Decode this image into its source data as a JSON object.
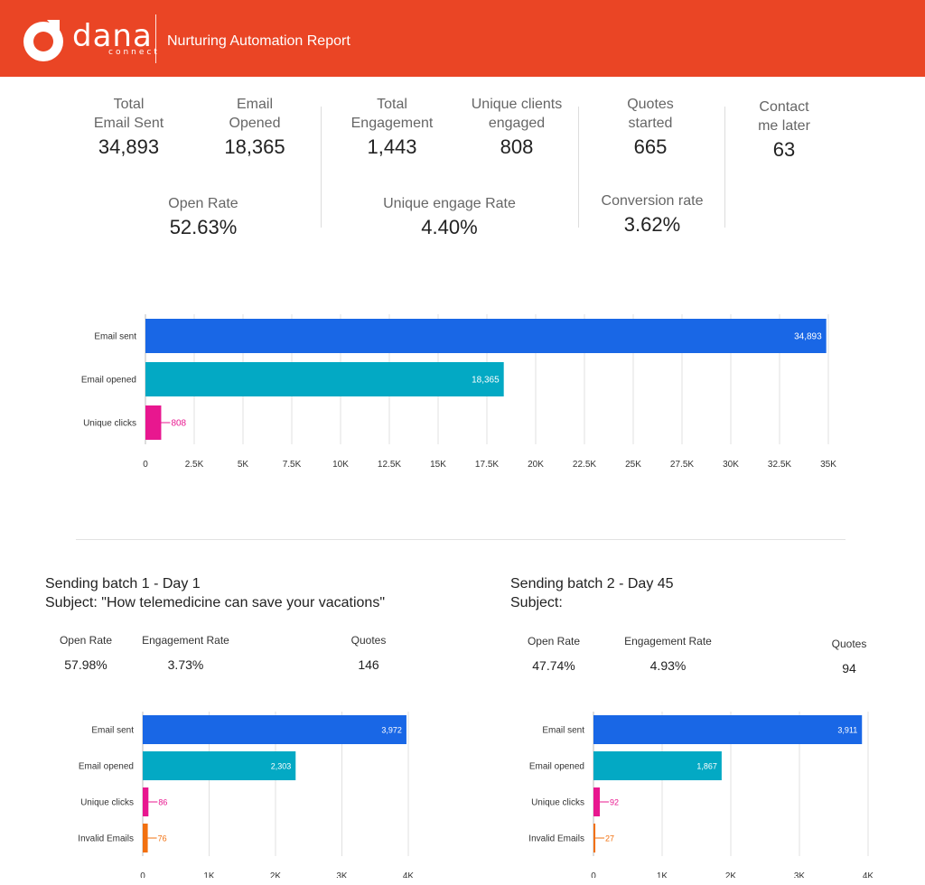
{
  "header": {
    "logo_text": "dana",
    "logo_sub": "connect",
    "title": "Nurturing Automation Report",
    "brand_color": "#ea4525"
  },
  "kpis": {
    "total_email_sent": {
      "label": "Total\nEmail Sent",
      "value": "34,893"
    },
    "email_opened": {
      "label": "Email\nOpened",
      "value": "18,365"
    },
    "total_engagement": {
      "label": "Total\nEngagement",
      "value": "1,443"
    },
    "unique_clients_engaged": {
      "label": "Unique clients\nengaged",
      "value": "808"
    },
    "quotes_started": {
      "label": "Quotes\nstarted",
      "value": "665"
    },
    "contact_me_later": {
      "label": "Contact\nme later",
      "value": "63"
    },
    "open_rate": {
      "label": "Open Rate",
      "value": "52.63%"
    },
    "unique_engage_rate": {
      "label": "Unique engage Rate",
      "value": "4.40%"
    },
    "conversion_rate": {
      "label": "Conversion rate",
      "value": "3.62%"
    }
  },
  "batch1": {
    "title": "Sending batch 1 - Day 1",
    "subject": "Subject: \"How telemedicine can save your vacations\"",
    "open_rate": {
      "label": "Open Rate",
      "value": "57.98%"
    },
    "engagement_rate": {
      "label": "Engagement Rate",
      "value": "3.73%"
    },
    "quotes": {
      "label": "Quotes",
      "value": "146"
    }
  },
  "batch2": {
    "title": "Sending batch 2 - Day 45",
    "subject": "Subject:",
    "open_rate": {
      "label": "Open Rate",
      "value": "47.74%"
    },
    "engagement_rate": {
      "label": "Engagement Rate",
      "value": "4.93%"
    },
    "quotes": {
      "label": "Quotes",
      "value": "94"
    }
  },
  "colors": {
    "email_sent": "#1967e6",
    "email_opened": "#03a9c4",
    "unique_clients": "#e8178f",
    "invalid_emails": "#f2700f"
  },
  "chart_data": [
    {
      "type": "bar",
      "orientation": "horizontal",
      "categories": [
        "Email sent",
        "Email opened",
        "Unique clicks"
      ],
      "values": [
        34893,
        18365,
        808
      ],
      "value_labels": [
        "34,893",
        "18,365",
        "808"
      ],
      "colors": [
        "#1967e6",
        "#03a9c4",
        "#e8178f"
      ],
      "xlim": [
        0,
        35000
      ],
      "xticks": [
        0,
        2500,
        5000,
        7500,
        10000,
        12500,
        15000,
        17500,
        20000,
        22500,
        25000,
        27500,
        30000,
        32500,
        35000
      ],
      "xtick_labels": [
        "0",
        "2.5K",
        "5K",
        "7.5K",
        "10K",
        "12.5K",
        "15K",
        "17.5K",
        "20K",
        "22.5K",
        "25K",
        "27.5K",
        "30K",
        "32.5K",
        "35K"
      ],
      "grid": true
    },
    {
      "type": "bar",
      "orientation": "horizontal",
      "categories": [
        "Email sent",
        "Email opened",
        "Unique clicks",
        "Invalid Emails"
      ],
      "values": [
        3972,
        2303,
        86,
        76
      ],
      "value_labels": [
        "3,972",
        "2,303",
        "86",
        "76"
      ],
      "colors": [
        "#1967e6",
        "#03a9c4",
        "#e8178f",
        "#f2700f"
      ],
      "xlim": [
        0,
        4000
      ],
      "xticks": [
        0,
        1000,
        2000,
        3000,
        4000
      ],
      "xtick_labels": [
        "0",
        "1K",
        "2K",
        "3K",
        "4K"
      ],
      "grid": true
    },
    {
      "type": "bar",
      "orientation": "horizontal",
      "categories": [
        "Email sent",
        "Email opened",
        "Unique clicks",
        "Invalid Emails"
      ],
      "values": [
        3911,
        1867,
        92,
        27
      ],
      "value_labels": [
        "3,911",
        "1,867",
        "92",
        "27"
      ],
      "colors": [
        "#1967e6",
        "#03a9c4",
        "#e8178f",
        "#f2700f"
      ],
      "xlim": [
        0,
        4000
      ],
      "xticks": [
        0,
        1000,
        2000,
        3000,
        4000
      ],
      "xtick_labels": [
        "0",
        "1K",
        "2K",
        "3K",
        "4K"
      ],
      "grid": true
    }
  ]
}
